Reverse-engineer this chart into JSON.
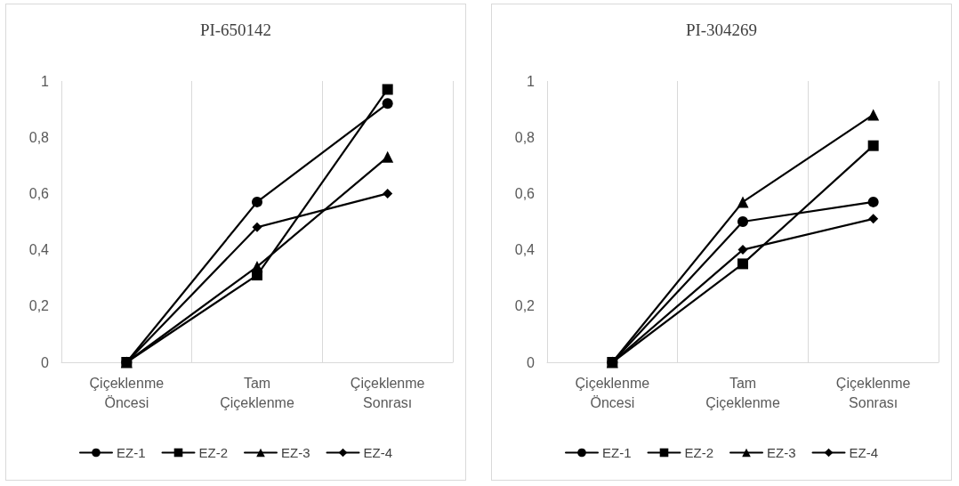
{
  "chart_data": [
    {
      "type": "line",
      "title": "PI-650142",
      "categories": [
        "Çiçeklenme\nÖncesi",
        "Tam\nÇiçeklenme",
        "Çiçeklenme\nSonrası"
      ],
      "ylim": [
        0,
        1
      ],
      "yticks": [
        {
          "value": 0,
          "label": "0"
        },
        {
          "value": 0.2,
          "label": "0,2"
        },
        {
          "value": 0.4,
          "label": "0,4"
        },
        {
          "value": 0.6,
          "label": "0,6"
        },
        {
          "value": 0.8,
          "label": "0,8"
        },
        {
          "value": 1,
          "label": "1"
        }
      ],
      "grid": "x",
      "legend": "bottom",
      "line_style": "solid",
      "series": [
        {
          "name": "EZ-1",
          "color": "#000000",
          "marker": "circle",
          "values": [
            0,
            0.57,
            0.92
          ]
        },
        {
          "name": "EZ-2",
          "color": "#000000",
          "marker": "square",
          "values": [
            0,
            0.31,
            0.97
          ]
        },
        {
          "name": "EZ-3",
          "color": "#000000",
          "marker": "triangle",
          "values": [
            0,
            0.34,
            0.73
          ]
        },
        {
          "name": "EZ-4",
          "color": "#000000",
          "marker": "diamond",
          "values": [
            0,
            0.48,
            0.6
          ]
        }
      ]
    },
    {
      "type": "line",
      "title": "PI-304269",
      "categories": [
        "Çiçeklenme\nÖncesi",
        "Tam\nÇiçeklenme",
        "Çiçeklenme\nSonrası"
      ],
      "ylim": [
        0,
        1
      ],
      "yticks": [
        {
          "value": 0,
          "label": "0"
        },
        {
          "value": 0.2,
          "label": "0,2"
        },
        {
          "value": 0.4,
          "label": "0,4"
        },
        {
          "value": 0.6,
          "label": "0,6"
        },
        {
          "value": 0.8,
          "label": "0,8"
        },
        {
          "value": 1,
          "label": "1"
        }
      ],
      "grid": "x",
      "legend": "bottom",
      "line_style": "solid",
      "series": [
        {
          "name": "EZ-1",
          "color": "#000000",
          "marker": "circle",
          "values": [
            0,
            0.5,
            0.57
          ]
        },
        {
          "name": "EZ-2",
          "color": "#000000",
          "marker": "square",
          "values": [
            0,
            0.35,
            0.77
          ]
        },
        {
          "name": "EZ-3",
          "color": "#000000",
          "marker": "triangle",
          "values": [
            0,
            0.57,
            0.88
          ]
        },
        {
          "name": "EZ-4",
          "color": "#000000",
          "marker": "diamond",
          "values": [
            0,
            0.4,
            0.51
          ]
        }
      ]
    }
  ]
}
